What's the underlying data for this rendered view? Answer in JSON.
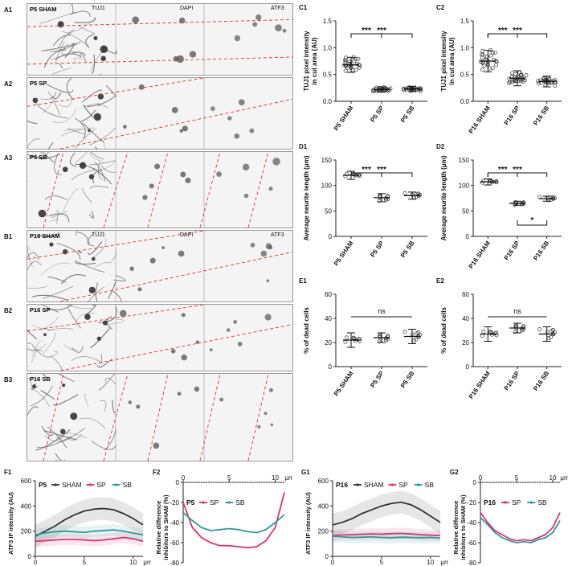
{
  "panels": {
    "A1": {
      "id": "A1",
      "tag": "P5 SHAM",
      "channels": [
        "TUJ1",
        "DAPI",
        "ATF3"
      ]
    },
    "A2": {
      "id": "A2",
      "tag": "P5 SP"
    },
    "A3": {
      "id": "A3",
      "tag": "P5 SB"
    },
    "B1": {
      "id": "B1",
      "tag": "P16 SHAM",
      "channels": [
        "TUJ1",
        "DAPI",
        "ATF3"
      ]
    },
    "B2": {
      "id": "B2",
      "tag": "P16 SP"
    },
    "B3": {
      "id": "B3",
      "tag": "P16 SB"
    }
  },
  "chart_data": [
    {
      "id": "C1",
      "type": "scatter",
      "ylabel": "TUJ1 pixel intensity\nin cut area (AU)",
      "categories": [
        "P5 SHAM",
        "P5 SP",
        "P5 SB"
      ],
      "ylim": [
        0,
        1.5
      ],
      "yticks": [
        "0.0",
        "0.5",
        "1.0",
        "1.5"
      ],
      "means": [
        0.68,
        0.22,
        0.23
      ],
      "sds": [
        0.14,
        0.05,
        0.05
      ],
      "n": 26,
      "annotations": [
        {
          "from": 0,
          "to": 1,
          "text": "***"
        },
        {
          "from": 0,
          "to": 2,
          "text": "***"
        }
      ]
    },
    {
      "id": "C2",
      "type": "scatter",
      "ylabel": "TUJ1 pixel intensity\nin cut area (AU)",
      "categories": [
        "P16 SHAM",
        "P16 SP",
        "P16 SB"
      ],
      "ylim": [
        0,
        1.5
      ],
      "yticks": [
        "0.0",
        "0.5",
        "1.0",
        "1.5"
      ],
      "means": [
        0.75,
        0.43,
        0.37
      ],
      "sds": [
        0.2,
        0.14,
        0.1
      ],
      "n": 26,
      "annotations": [
        {
          "from": 0,
          "to": 1,
          "text": "***"
        },
        {
          "from": 0,
          "to": 2,
          "text": "***"
        }
      ]
    },
    {
      "id": "D1",
      "type": "scatter",
      "ylabel": "Average neurite length (μm)",
      "categories": [
        "P5 SHAM",
        "P5 SP",
        "P5 SB"
      ],
      "ylim": [
        0,
        150
      ],
      "yticks": [
        "0",
        "50",
        "100",
        "150"
      ],
      "means": [
        120,
        76,
        80
      ],
      "sds": [
        8,
        8,
        7
      ],
      "n": 9,
      "annotations": [
        {
          "from": 0,
          "to": 1,
          "text": "***"
        },
        {
          "from": 0,
          "to": 2,
          "text": "***"
        }
      ]
    },
    {
      "id": "D2",
      "type": "scatter",
      "ylabel": "Average neurite length (μm)",
      "categories": [
        "P16 SHAM",
        "P16 SP",
        "P16 SB"
      ],
      "ylim": [
        0,
        150
      ],
      "yticks": [
        "0",
        "50",
        "100",
        "150"
      ],
      "means": [
        107,
        65,
        74
      ],
      "sds": [
        6,
        4,
        5
      ],
      "n": 9,
      "annotations": [
        {
          "from": 0,
          "to": 1,
          "text": "***"
        },
        {
          "from": 0,
          "to": 2,
          "text": "***"
        },
        {
          "from": 1,
          "to": 2,
          "text": "*",
          "below": true
        }
      ]
    },
    {
      "id": "E1",
      "type": "scatter",
      "ylabel": "% of dead cells",
      "categories": [
        "P5 SHAM",
        "P5 SP",
        "P5 SB"
      ],
      "ylim": [
        0,
        60
      ],
      "yticks": [
        "0",
        "20",
        "40",
        "60"
      ],
      "means": [
        22,
        24,
        25
      ],
      "sds": [
        6,
        4,
        6
      ],
      "n": 9,
      "annotations": [
        {
          "from": 0,
          "to": 2,
          "text": "ns",
          "flat": true
        }
      ]
    },
    {
      "id": "E2",
      "type": "scatter",
      "ylabel": "% of dead cells",
      "categories": [
        "P16 SHAM",
        "P16 SP",
        "P16 SB"
      ],
      "ylim": [
        0,
        60
      ],
      "yticks": [
        "0",
        "20",
        "40",
        "60"
      ],
      "means": [
        27,
        32,
        27
      ],
      "sds": [
        6,
        4,
        6
      ],
      "n": 9,
      "annotations": [
        {
          "from": 0,
          "to": 2,
          "text": "ns",
          "flat": true
        }
      ]
    },
    {
      "id": "F1",
      "type": "line",
      "title": "P5",
      "ylabel": "ATF3 IF intensity (AU)",
      "xlim": [
        0,
        11
      ],
      "ylim": [
        0,
        600
      ],
      "xticks": [
        "0",
        "5",
        "10"
      ],
      "xunit": "μm",
      "yticks": [
        "0",
        "200",
        "400",
        "600"
      ],
      "series": [
        {
          "name": "SHAM",
          "color": "#333333",
          "values": [
            160,
            200,
            240,
            290,
            330,
            360,
            375,
            380,
            370,
            340,
            300,
            250
          ]
        },
        {
          "name": "SP",
          "color": "#e0306f",
          "values": [
            120,
            125,
            130,
            135,
            135,
            130,
            125,
            130,
            140,
            150,
            140,
            120
          ]
        },
        {
          "name": "SB",
          "color": "#2a9a9a",
          "values": [
            170,
            185,
            195,
            200,
            195,
            190,
            200,
            205,
            210,
            200,
            185,
            170
          ]
        }
      ]
    },
    {
      "id": "F2",
      "type": "line",
      "title": "P5",
      "ylabel": "Relative difference\ninhibitors to SHAM (%)",
      "xlim": [
        0,
        11
      ],
      "ylim": [
        -80,
        0
      ],
      "xticks": [
        "0",
        "5",
        "10"
      ],
      "xunit": "μm",
      "yticks": [
        "0",
        "-20",
        "-40",
        "-60",
        "-80"
      ],
      "series": [
        {
          "name": "SP",
          "color": "#e0306f",
          "values": [
            -20,
            -45,
            -55,
            -60,
            -63,
            -63,
            -64,
            -65,
            -64,
            -58,
            -45,
            -10
          ]
        },
        {
          "name": "SB",
          "color": "#2a9a9a",
          "values": [
            -30,
            -38,
            -45,
            -48,
            -47,
            -46,
            -47,
            -49,
            -50,
            -47,
            -40,
            -32
          ]
        }
      ]
    },
    {
      "id": "G1",
      "type": "line",
      "title": "P16",
      "ylabel": "ATF3 IF intensity (AU)",
      "xlim": [
        0,
        11
      ],
      "ylim": [
        0,
        600
      ],
      "xticks": [
        "0",
        "5",
        "10"
      ],
      "xunit": "μm",
      "yticks": [
        "0",
        "200",
        "400",
        "600"
      ],
      "series": [
        {
          "name": "SHAM",
          "color": "#333333",
          "values": [
            250,
            270,
            300,
            340,
            370,
            400,
            420,
            430,
            410,
            370,
            320,
            270
          ]
        },
        {
          "name": "SP",
          "color": "#e0306f",
          "values": [
            165,
            170,
            172,
            175,
            178,
            176,
            180,
            182,
            178,
            172,
            168,
            165
          ]
        },
        {
          "name": "SB",
          "color": "#2a9a9a",
          "values": [
            160,
            155,
            150,
            152,
            155,
            150,
            148,
            152,
            150,
            148,
            150,
            145
          ]
        }
      ]
    },
    {
      "id": "G2",
      "type": "line",
      "title": "P16",
      "ylabel": "Relative difference\ninhibitors to SHAM (%)",
      "xlim": [
        0,
        11
      ],
      "ylim": [
        -80,
        0
      ],
      "xticks": [
        "0",
        "5",
        "10"
      ],
      "xunit": "μm",
      "yticks": [
        "0",
        "-20",
        "-40",
        "-60",
        "-80"
      ],
      "series": [
        {
          "name": "SP",
          "color": "#e0306f",
          "values": [
            -30,
            -40,
            -48,
            -52,
            -56,
            -58,
            -57,
            -58,
            -55,
            -52,
            -45,
            -30
          ]
        },
        {
          "name": "SB",
          "color": "#2a9a9a",
          "values": [
            -35,
            -42,
            -50,
            -55,
            -58,
            -60,
            -59,
            -60,
            -57,
            -55,
            -50,
            -38
          ]
        }
      ]
    }
  ]
}
